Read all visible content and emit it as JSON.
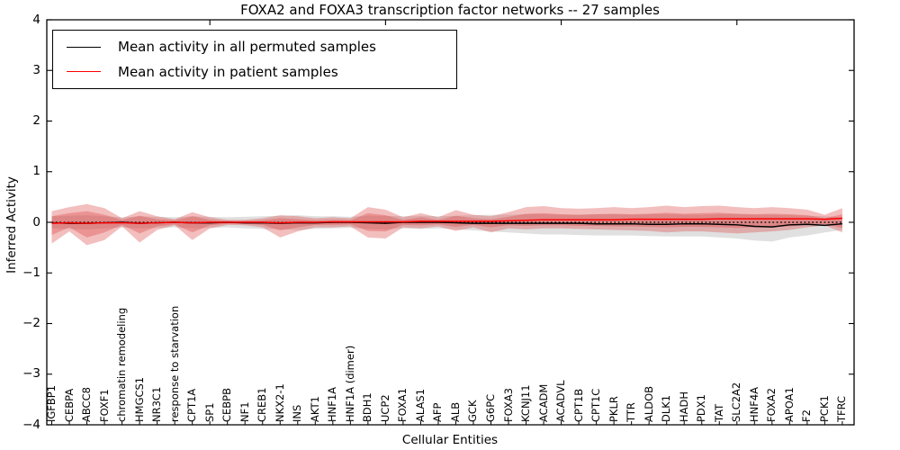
{
  "title": "FOXA2 and FOXA3 transcription factor networks -- 27 samples",
  "legend": {
    "items": [
      {
        "label": "Mean activity in all permuted samples",
        "color": "#000000"
      },
      {
        "label": "Mean activity in patient samples",
        "color": "#ff0000"
      }
    ]
  },
  "axes": {
    "x_label": "Cellular Entities",
    "y_label": "Inferred Activity",
    "y_tick_labels": [
      "4",
      "3",
      "2",
      "1",
      "0",
      "−1",
      "−2",
      "−3",
      "−4"
    ],
    "y_tick_values": [
      4,
      3,
      2,
      1,
      0,
      -1,
      -2,
      -3,
      -4
    ]
  },
  "chart_data": {
    "type": "line",
    "title": "FOXA2 and FOXA3 transcription factor networks -- 27 samples",
    "xlabel": "Cellular Entities",
    "ylabel": "Inferred Activity",
    "ylim": [
      -4,
      4
    ],
    "xlim": [
      0.5,
      46.5
    ],
    "grid": false,
    "legend_position": "upper left",
    "top_axis_ticks_x": [
      10,
      20,
      30,
      40
    ],
    "zero_line": {
      "style": "dotted",
      "color": "#000000",
      "y": 0
    },
    "categories": [
      "IGFBP1",
      "CEBPA",
      "ABCC8",
      "FOXF1",
      "chromatin remodeling",
      "HMGCS1",
      "NR3C1",
      "response to starvation",
      "CPT1A",
      "SP1",
      "CEBPB",
      "NF1",
      "CREB1",
      "NKX2-1",
      "INS",
      "AKT1",
      "HNF1A",
      "HNF1A (dimer)",
      "BDH1",
      "UCP2",
      "FOXA1",
      "ALAS1",
      "AFP",
      "ALB",
      "GCK",
      "G6PC",
      "FOXA3",
      "KCNJ11",
      "ACADM",
      "ACADVL",
      "CPT1B",
      "CPT1C",
      "PKLR",
      "TTR",
      "ALDOB",
      "DLK1",
      "HADH",
      "PDX1",
      "TAT",
      "SLC2A2",
      "HNF4A",
      "FOXA2",
      "APOA1",
      "F2",
      "PCK1",
      "TFRC"
    ],
    "series": [
      {
        "name": "Mean activity in all permuted samples",
        "color": "#000000",
        "values": [
          -0.01,
          -0.02,
          -0.02,
          -0.01,
          0,
          -0.02,
          -0.01,
          0,
          -0.01,
          -0.01,
          0,
          -0.01,
          -0.01,
          -0.02,
          -0.01,
          -0.01,
          0,
          0,
          -0.01,
          -0.02,
          0,
          0,
          0,
          -0.01,
          -0.02,
          -0.02,
          -0.02,
          -0.02,
          -0.02,
          -0.02,
          -0.02,
          -0.03,
          -0.03,
          -0.03,
          -0.04,
          -0.04,
          -0.03,
          -0.03,
          -0.04,
          -0.05,
          -0.08,
          -0.09,
          -0.05,
          -0.04,
          -0.06,
          -0.03
        ]
      },
      {
        "name": "Mean activity in patient samples",
        "color": "#ff0000",
        "values": [
          -0.02,
          -0.01,
          -0.02,
          -0.01,
          -0.01,
          -0.02,
          -0.01,
          0,
          -0.01,
          0,
          0,
          0,
          0,
          -0.01,
          0,
          0,
          0.01,
          0.01,
          0.01,
          0.01,
          0.01,
          0.02,
          0.02,
          0.02,
          0.02,
          0.02,
          0.03,
          0.04,
          0.05,
          0.05,
          0.05,
          0.05,
          0.05,
          0.06,
          0.06,
          0.06,
          0.06,
          0.06,
          0.07,
          0.07,
          0.07,
          0.07,
          0.07,
          0.07,
          0.06,
          0.08
        ]
      }
    ],
    "bands": [
      {
        "name": "permuted-samples-range",
        "color": "#999999",
        "opacity": 0.3,
        "upper": [
          0.12,
          0.13,
          0.14,
          0.12,
          0.1,
          0.12,
          0.11,
          0.1,
          0.12,
          0.11,
          0.1,
          0.11,
          0.12,
          0.13,
          0.14,
          0.12,
          0.12,
          0.11,
          0.13,
          0.13,
          0.12,
          0.13,
          0.12,
          0.13,
          0.14,
          0.15,
          0.15,
          0.16,
          0.16,
          0.15,
          0.15,
          0.16,
          0.16,
          0.15,
          0.16,
          0.16,
          0.15,
          0.15,
          0.16,
          0.16,
          0.15,
          0.15,
          0.14,
          0.13,
          0.12,
          0.1
        ],
        "lower": [
          -0.12,
          -0.13,
          -0.14,
          -0.12,
          -0.1,
          -0.12,
          -0.11,
          -0.1,
          -0.12,
          -0.11,
          -0.1,
          -0.12,
          -0.13,
          -0.14,
          -0.15,
          -0.13,
          -0.12,
          -0.11,
          -0.13,
          -0.14,
          -0.12,
          -0.13,
          -0.12,
          -0.14,
          -0.16,
          -0.18,
          -0.2,
          -0.22,
          -0.24,
          -0.24,
          -0.25,
          -0.26,
          -0.26,
          -0.26,
          -0.27,
          -0.28,
          -0.28,
          -0.28,
          -0.3,
          -0.32,
          -0.36,
          -0.38,
          -0.3,
          -0.26,
          -0.2,
          -0.15
        ]
      },
      {
        "name": "patient-samples-range-outer",
        "color": "#dd4444",
        "opacity": 0.35,
        "upper": [
          0.22,
          0.3,
          0.36,
          0.28,
          0.08,
          0.22,
          0.12,
          0.06,
          0.2,
          0.1,
          0.05,
          0.05,
          0.08,
          0.14,
          0.12,
          0.08,
          0.1,
          0.08,
          0.3,
          0.25,
          0.1,
          0.18,
          0.1,
          0.24,
          0.15,
          0.12,
          0.2,
          0.3,
          0.32,
          0.28,
          0.27,
          0.28,
          0.3,
          0.28,
          0.3,
          0.33,
          0.3,
          0.32,
          0.33,
          0.3,
          0.28,
          0.3,
          0.28,
          0.25,
          0.15,
          0.28
        ],
        "lower": [
          -0.42,
          -0.18,
          -0.45,
          -0.35,
          -0.08,
          -0.4,
          -0.15,
          -0.06,
          -0.35,
          -0.12,
          -0.05,
          -0.06,
          -0.1,
          -0.3,
          -0.18,
          -0.1,
          -0.1,
          -0.08,
          -0.3,
          -0.32,
          -0.1,
          -0.12,
          -0.08,
          -0.17,
          -0.1,
          -0.2,
          -0.12,
          -0.14,
          -0.12,
          -0.12,
          -0.13,
          -0.14,
          -0.15,
          -0.16,
          -0.17,
          -0.2,
          -0.18,
          -0.18,
          -0.2,
          -0.22,
          -0.2,
          -0.18,
          -0.15,
          -0.1,
          -0.06,
          -0.2
        ]
      },
      {
        "name": "patient-samples-range-inner",
        "color": "#dd4444",
        "opacity": 0.35,
        "upper": [
          0.12,
          0.18,
          0.22,
          0.15,
          0.05,
          0.13,
          0.06,
          0.04,
          0.12,
          0.05,
          0.03,
          0.03,
          0.04,
          0.08,
          0.06,
          0.04,
          0.05,
          0.04,
          0.18,
          0.14,
          0.05,
          0.1,
          0.05,
          0.13,
          0.08,
          0.06,
          0.11,
          0.17,
          0.18,
          0.16,
          0.15,
          0.16,
          0.17,
          0.16,
          0.17,
          0.19,
          0.17,
          0.18,
          0.19,
          0.17,
          0.16,
          0.17,
          0.16,
          0.14,
          0.08,
          0.16
        ],
        "lower": [
          -0.25,
          -0.1,
          -0.3,
          -0.2,
          -0.05,
          -0.22,
          -0.08,
          -0.04,
          -0.2,
          -0.06,
          -0.03,
          -0.03,
          -0.05,
          -0.16,
          -0.1,
          -0.05,
          -0.05,
          -0.04,
          -0.17,
          -0.18,
          -0.05,
          -0.06,
          -0.04,
          -0.09,
          -0.05,
          -0.1,
          -0.06,
          -0.07,
          -0.06,
          -0.06,
          -0.07,
          -0.07,
          -0.08,
          -0.08,
          -0.09,
          -0.1,
          -0.09,
          -0.09,
          -0.1,
          -0.11,
          -0.1,
          -0.09,
          -0.08,
          -0.05,
          -0.03,
          -0.11
        ]
      }
    ]
  }
}
